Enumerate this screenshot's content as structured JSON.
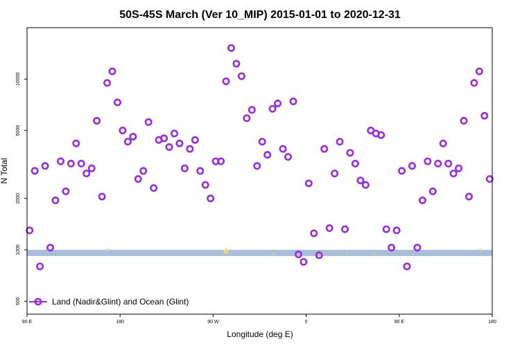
{
  "chart_data": {
    "type": "scatter",
    "title": "50S-45S March (Ver 10_MIP)   2015-01-01 to 2020-12-31",
    "xlabel": "Longitude (deg E)",
    "ylabel": "N Total",
    "x_scale": "linear",
    "y_scale": "log",
    "xlim": [
      90,
      540
    ],
    "ylim": [
      420,
      20000
    ],
    "x_ticks": [
      {
        "value": 90,
        "label": "90 E"
      },
      {
        "value": 180,
        "label": "180"
      },
      {
        "value": 270,
        "label": "90 W"
      },
      {
        "value": 360,
        "label": "0"
      },
      {
        "value": 450,
        "label": "90 E"
      },
      {
        "value": 540,
        "label": "180"
      }
    ],
    "y_ticks": [
      {
        "value": 500,
        "label": "500"
      },
      {
        "value": 1000,
        "label": "1000"
      },
      {
        "value": 2000,
        "label": "2000"
      },
      {
        "value": 5000,
        "label": "5000"
      },
      {
        "value": 10000,
        "label": "10000"
      }
    ],
    "band": {
      "ymin": 920,
      "ymax": 1000,
      "color": "#a7bedc"
    },
    "grid": false,
    "legend_position": "bottom-left",
    "series": [
      {
        "name": "Land (Nadir&Glint) and Ocean (Glint)",
        "color": "#9a2be2",
        "marker": "circle-open",
        "x": [
          92.5,
          97.5,
          102.5,
          107.5,
          112.5,
          117.5,
          122.5,
          127.5,
          132.5,
          137.5,
          142.5,
          147.5,
          152.5,
          157.5,
          162.5,
          167.5,
          172.5,
          177.5,
          182.5,
          187.5,
          192.5,
          197.5,
          202.5,
          207.5,
          212.5,
          217.5,
          222.5,
          227.5,
          232.5,
          237.5,
          242.5,
          247.5,
          252.5,
          257.5,
          262.5,
          267.5,
          272.5,
          277.5,
          282.5,
          287.5,
          292.5,
          297.5,
          302.5,
          307.5,
          312.5,
          317.5,
          322.5,
          327.5,
          332.5,
          337.5,
          342.5,
          347.5,
          352.5,
          357.5,
          362.5,
          367.5,
          372.5,
          377.5,
          382.5,
          387.5,
          392.5,
          397.5,
          402.5,
          407.5,
          412.5,
          417.5,
          422.5,
          427.5,
          432.5,
          437.5,
          442.5,
          447.5,
          452.5,
          457.5,
          462.5,
          467.5,
          472.5,
          477.5,
          482.5,
          487.5,
          492.5,
          497.5,
          502.5,
          507.5,
          512.5,
          517.5,
          522.5,
          527.5,
          532.5,
          537.5
        ],
        "y": [
          1300,
          2900,
          800,
          3100,
          1030,
          1950,
          3300,
          2200,
          3200,
          4200,
          3200,
          2800,
          3000,
          5700,
          2050,
          9500,
          11100,
          7300,
          5000,
          4300,
          4600,
          2600,
          2900,
          5600,
          2300,
          4400,
          4500,
          4000,
          4800,
          4200,
          3000,
          3900,
          4400,
          2900,
          2400,
          2000,
          3300,
          3300,
          9700,
          15200,
          12300,
          10400,
          5900,
          6600,
          3100,
          4300,
          3600,
          6700,
          7200,
          3900,
          3500,
          7400,
          940,
          850,
          2450,
          1250,
          930,
          3900,
          1340,
          2800,
          4300,
          1320,
          3700,
          3200,
          2550,
          2400,
          5000,
          4800,
          4700,
          1320,
          1030,
          1300,
          2900,
          800,
          3100,
          1030,
          1950,
          3300,
          2200,
          3200,
          4200,
          3200,
          2800,
          3000,
          5700,
          2050,
          9500,
          11100,
          6100,
          2600
        ]
      },
      {
        "name": "",
        "color": "#f6d76c",
        "marker": "star",
        "x": [
          167.5,
          282.5,
          328.5,
          375.5,
          399.5,
          425.5,
          528.5
        ],
        "y": [
          1000,
          980,
          945,
          955,
          960,
          945,
          1000
        ],
        "size": [
          3,
          6,
          2,
          2,
          2,
          2,
          3
        ]
      }
    ]
  }
}
